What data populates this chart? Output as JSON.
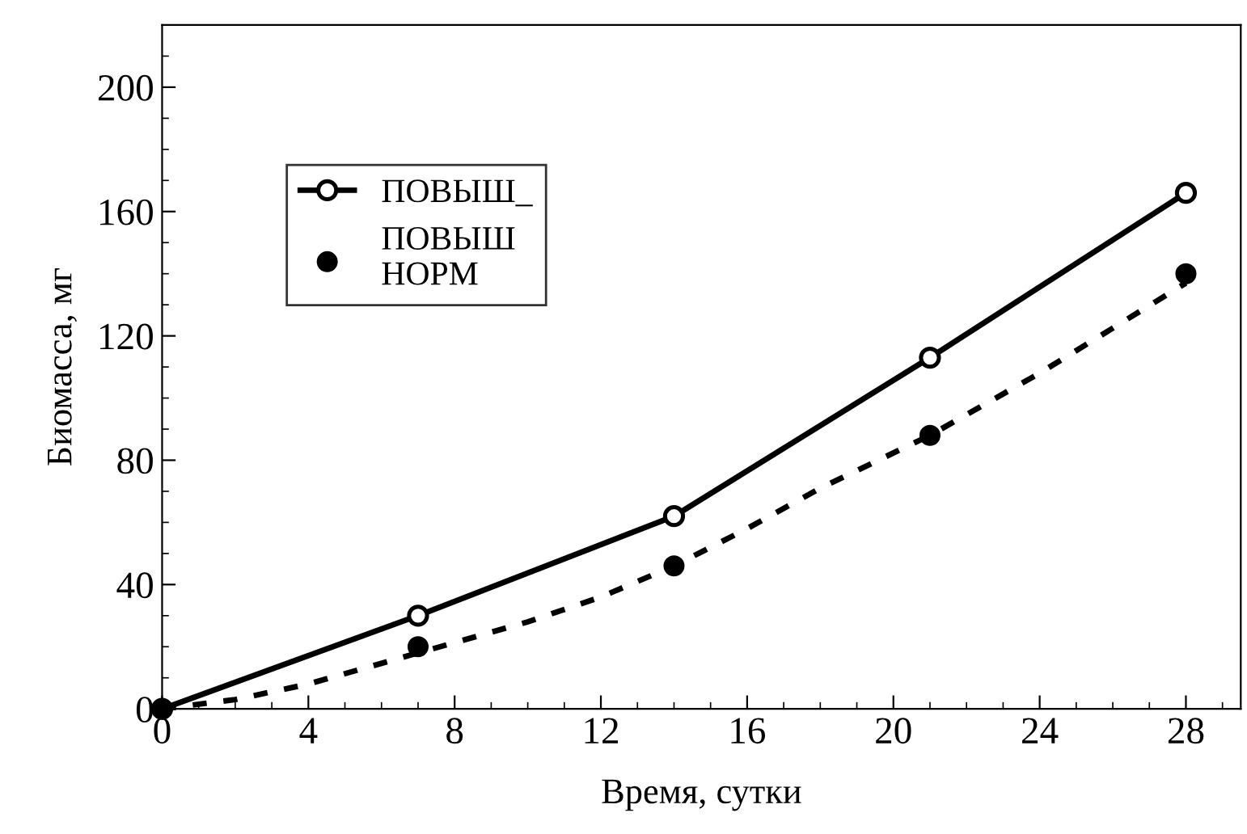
{
  "chart_data": {
    "type": "line",
    "xlabel": "Время, сутки",
    "ylabel": "Биомасса, мг",
    "xlim": [
      0,
      29.5
    ],
    "ylim": [
      0,
      220
    ],
    "xticks": [
      0,
      4,
      8,
      12,
      16,
      20,
      24,
      28
    ],
    "yticks": [
      0,
      40,
      80,
      120,
      160,
      200
    ],
    "grid": false,
    "legend": "top left",
    "series": [
      {
        "name": "ПОВЫШ_",
        "color": "#000000",
        "marker": "circle",
        "line_style": "solid",
        "x": [
          0,
          7,
          14,
          21,
          28
        ],
        "values": [
          0,
          30,
          62,
          113,
          166
        ]
      },
      {
        "name": "ПОВЫШ\nНОРМ",
        "type": "scatter",
        "color": "#000000",
        "marker": "circle",
        "x": [
          0,
          7,
          14,
          21,
          28
        ],
        "values": [
          0,
          20,
          46,
          88,
          140
        ]
      },
      {
        "type": "line",
        "color": "#000000",
        "marker": "none",
        "line_style": "dashed",
        "x": [
          0,
          2,
          4,
          7,
          10,
          12,
          14,
          16,
          18,
          21,
          24,
          28
        ],
        "values": [
          0,
          3,
          8,
          18,
          28,
          36,
          46,
          58,
          71,
          88,
          108,
          137
        ]
      }
    ]
  }
}
